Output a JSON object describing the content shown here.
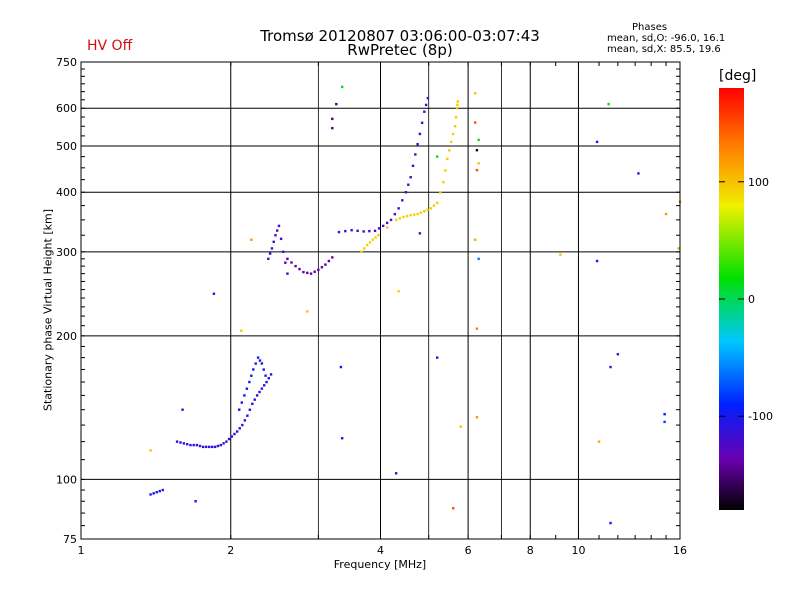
{
  "header": {
    "title_line1": "Tromsø 20120807 03:06:00-03:07:43",
    "title_line2": "RwPretec (8p)",
    "hv_status": "HV Off",
    "stats_title": "Phases",
    "stats_o": "mean, sd,O: -96.0, 16.1",
    "stats_x": "mean, sd,X:  85.5, 19.6"
  },
  "colorbar": {
    "label": "[deg]",
    "ticks": [
      {
        "value": 100,
        "label": "100"
      },
      {
        "value": 0,
        "label": "0"
      },
      {
        "value": -100,
        "label": "-100"
      }
    ],
    "range": [
      -180,
      180
    ]
  },
  "chart_data": {
    "type": "scatter",
    "title": "Tromsø 20120807 03:06:00-03:07:43",
    "subtitle": "RwPretec (8p)",
    "xlabel": "Frequency [MHz]",
    "ylabel": "Stationary phase Virtual Height [km]",
    "xscale": "log",
    "yscale": "log",
    "xlim": [
      1,
      16
    ],
    "ylim": [
      75,
      750
    ],
    "xticks": [
      1,
      2,
      4,
      6,
      8,
      10,
      16
    ],
    "yticks": [
      75,
      100,
      200,
      300,
      400,
      500,
      600,
      750
    ],
    "grid": true,
    "color_variable": "phase [deg]",
    "segments": [
      {
        "x": [
          1.38,
          1.42,
          1.46
        ],
        "y": [
          93,
          94,
          95
        ],
        "phase": -100
      },
      {
        "x": [
          1.56,
          1.61,
          1.66,
          1.71,
          1.76,
          1.81,
          1.86,
          1.91,
          1.96,
          2.01,
          2.06,
          2.11,
          2.16,
          2.21,
          2.26,
          2.31,
          2.36,
          2.41
        ],
        "y": [
          120,
          119,
          118,
          118,
          117,
          117,
          117,
          118,
          120,
          123,
          126,
          130,
          136,
          144,
          150,
          155,
          160,
          166
        ],
        "phase": -110
      },
      {
        "x": [
          2.08,
          2.13,
          2.18,
          2.22,
          2.27,
          2.31,
          2.35
        ],
        "y": [
          140,
          150,
          160,
          170,
          180,
          175,
          165
        ],
        "phase": -100
      },
      {
        "x": [
          2.38,
          2.42,
          2.46,
          2.5,
          2.55,
          2.6
        ],
        "y": [
          290,
          305,
          325,
          340,
          300,
          270
        ],
        "phase": -120
      },
      {
        "x": [
          2.6,
          2.7,
          2.8,
          2.9,
          3.0,
          3.1,
          3.2
        ],
        "y": [
          290,
          280,
          272,
          270,
          275,
          282,
          292
        ],
        "phase": -140
      },
      {
        "x": [
          3.3,
          3.5,
          3.7,
          3.9,
          4.05,
          4.2,
          4.35,
          4.5,
          4.6,
          4.7,
          4.8,
          4.9,
          4.98
        ],
        "y": [
          330,
          333,
          331,
          332,
          340,
          350,
          370,
          400,
          430,
          480,
          530,
          590,
          630
        ],
        "phase": -120
      },
      {
        "x": [
          3.66,
          3.76,
          3.86,
          3.96,
          4.3,
          4.45,
          4.6,
          4.75,
          4.9,
          5.05,
          5.2,
          5.35,
          5.45,
          5.55,
          5.65,
          5.7,
          5.72
        ],
        "y": [
          300,
          310,
          318,
          325,
          350,
          355,
          358,
          360,
          365,
          370,
          380,
          420,
          470,
          510,
          550,
          600,
          620
        ],
        "phase": 95
      }
    ],
    "points": [
      {
        "x": 1.85,
        "y": 245,
        "phase": -100
      },
      {
        "x": 1.6,
        "y": 140,
        "phase": -110
      },
      {
        "x": 1.38,
        "y": 115,
        "phase": 100
      },
      {
        "x": 1.7,
        "y": 90,
        "phase": -90
      },
      {
        "x": 2.1,
        "y": 205,
        "phase": 95
      },
      {
        "x": 2.2,
        "y": 318,
        "phase": 120
      },
      {
        "x": 2.85,
        "y": 225,
        "phase": 100
      },
      {
        "x": 3.2,
        "y": 570,
        "phase": -150
      },
      {
        "x": 3.2,
        "y": 545,
        "phase": -150
      },
      {
        "x": 3.26,
        "y": 612,
        "phase": -150
      },
      {
        "x": 3.35,
        "y": 665,
        "phase": 10
      },
      {
        "x": 3.33,
        "y": 172,
        "phase": -90
      },
      {
        "x": 3.35,
        "y": 122,
        "phase": -100
      },
      {
        "x": 4.3,
        "y": 103,
        "phase": -100
      },
      {
        "x": 4.35,
        "y": 248,
        "phase": 95
      },
      {
        "x": 4.8,
        "y": 328,
        "phase": -120
      },
      {
        "x": 5.2,
        "y": 180,
        "phase": -120
      },
      {
        "x": 5.2,
        "y": 475,
        "phase": 10
      },
      {
        "x": 5.8,
        "y": 129,
        "phase": 100
      },
      {
        "x": 5.6,
        "y": 87,
        "phase": 150
      },
      {
        "x": 6.2,
        "y": 645,
        "phase": 100
      },
      {
        "x": 6.2,
        "y": 560,
        "phase": 150
      },
      {
        "x": 6.25,
        "y": 490,
        "phase": -170
      },
      {
        "x": 6.25,
        "y": 445,
        "phase": 150
      },
      {
        "x": 6.3,
        "y": 460,
        "phase": 100
      },
      {
        "x": 6.3,
        "y": 515,
        "phase": 10
      },
      {
        "x": 6.3,
        "y": 290,
        "phase": -60
      },
      {
        "x": 6.25,
        "y": 207,
        "phase": 130
      },
      {
        "x": 6.25,
        "y": 135,
        "phase": 120
      },
      {
        "x": 6.2,
        "y": 318,
        "phase": 110
      },
      {
        "x": 9.2,
        "y": 296,
        "phase": 100
      },
      {
        "x": 10.9,
        "y": 510,
        "phase": -110
      },
      {
        "x": 10.9,
        "y": 287,
        "phase": -100
      },
      {
        "x": 11.0,
        "y": 120,
        "phase": 110
      },
      {
        "x": 11.5,
        "y": 612,
        "phase": 10
      },
      {
        "x": 11.6,
        "y": 172,
        "phase": -110
      },
      {
        "x": 12.0,
        "y": 183,
        "phase": -120
      },
      {
        "x": 11.6,
        "y": 81,
        "phase": -110
      },
      {
        "x": 13.2,
        "y": 438,
        "phase": -100
      },
      {
        "x": 14.9,
        "y": 132,
        "phase": -80
      },
      {
        "x": 14.9,
        "y": 137,
        "phase": -90
      },
      {
        "x": 15.0,
        "y": 360,
        "phase": 120
      },
      {
        "x": 16.0,
        "y": 382,
        "phase": 120
      },
      {
        "x": 15.9,
        "y": 305,
        "phase": 50
      }
    ]
  }
}
